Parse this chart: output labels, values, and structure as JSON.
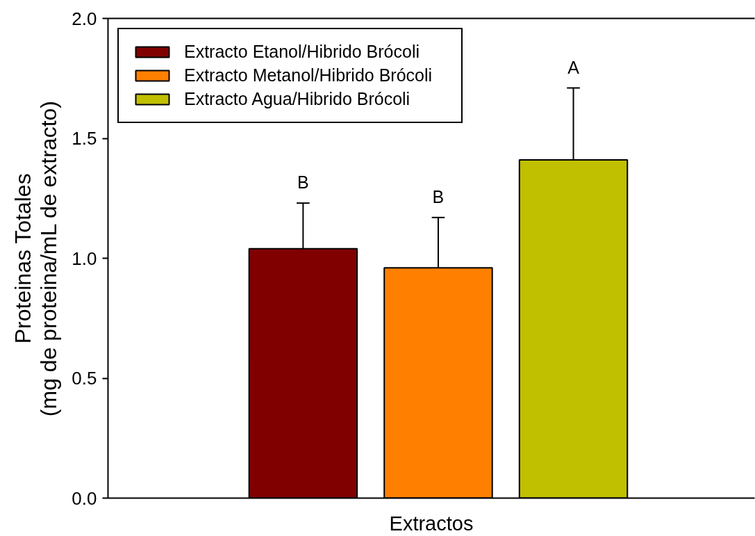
{
  "chart_data": {
    "type": "bar",
    "xlabel": "Extractos",
    "ylabel": "Proteinas Totales\n(mg de proteina/mL de extracto)",
    "categories": [
      null
    ],
    "series": [
      {
        "name": "Extracto Etanol/Hibrido Brócoli",
        "color": "#800000",
        "values": [
          1.04
        ],
        "errors": [
          [
            1.04,
            1.23
          ]
        ]
      },
      {
        "name": "Extracto Metanol/Hibrido Brócoli",
        "color": "#ff8000",
        "values": [
          0.96
        ],
        "errors": [
          [
            0.96,
            1.17
          ]
        ]
      },
      {
        "name": "Extracto Agua/Hibrido Brócoli",
        "color": "#c0c000",
        "values": [
          1.41
        ],
        "errors": [
          [
            1.41,
            1.71
          ]
        ]
      }
    ],
    "ylim": [
      0,
      2
    ],
    "yticks": [
      {
        "value": 0,
        "label": "0.0"
      },
      0.5,
      {
        "value": 1,
        "label": "1.0"
      },
      1.5,
      {
        "value": 2,
        "label": "2.0"
      }
    ],
    "legend": "top left",
    "annotations": [
      "B",
      "B",
      "A"
    ]
  }
}
